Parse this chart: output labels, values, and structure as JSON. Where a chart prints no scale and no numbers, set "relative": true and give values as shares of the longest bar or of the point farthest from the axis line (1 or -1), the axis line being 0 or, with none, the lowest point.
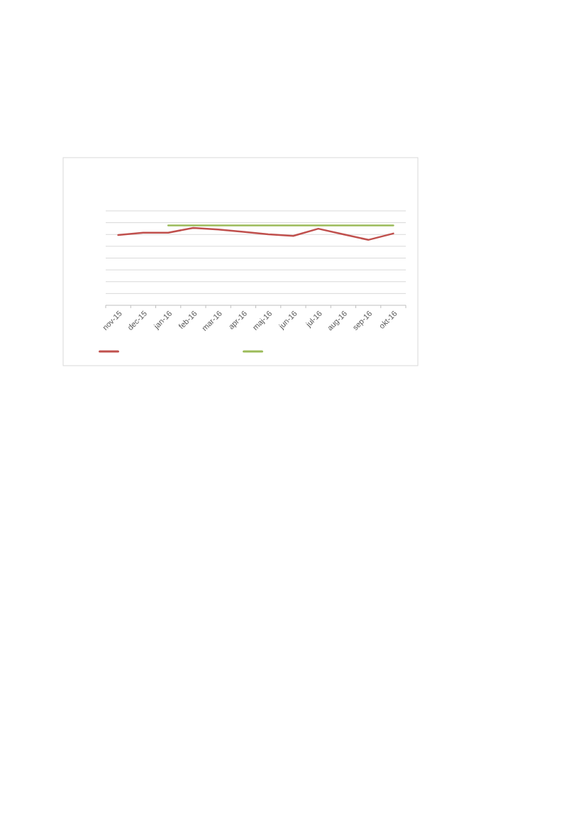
{
  "chart_data": {
    "type": "line",
    "relative": true,
    "categories": [
      "nov-15",
      "dec-15",
      "jan-16",
      "feb-16",
      "mar-16",
      "apr-16",
      "maj-16",
      "jun-16",
      "jul-16",
      "aug-16",
      "sep-16",
      "okt-16"
    ],
    "series": [
      {
        "color": "#c0504d",
        "values": [
          0.88,
          0.91,
          0.91,
          0.97,
          0.95,
          0.92,
          0.89,
          0.87,
          0.96,
          0.89,
          0.82,
          0.9
        ]
      },
      {
        "color": "#9bbb59",
        "values": [
          null,
          null,
          1,
          1,
          1,
          1,
          1,
          1,
          1,
          1,
          1,
          1
        ]
      }
    ],
    "grid": true,
    "marker": "none",
    "line_style": "solid"
  }
}
